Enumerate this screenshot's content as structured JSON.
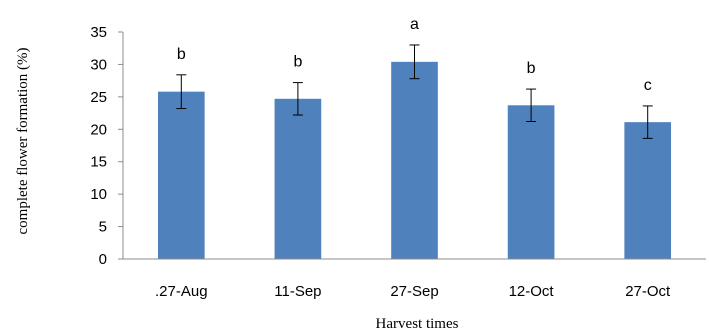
{
  "chart_data": {
    "type": "bar",
    "title": "",
    "xlabel": "Harvest times",
    "ylabel": "complete flower formation (%)",
    "ylim": [
      0,
      35
    ],
    "yticks": [
      0,
      5,
      10,
      15,
      20,
      25,
      30,
      35
    ],
    "grid": false,
    "categories": [
      ".27-Aug",
      "11-Sep",
      "27-Sep",
      "12-Oct",
      "27-Oct"
    ],
    "values": [
      25.8,
      24.7,
      30.4,
      23.7,
      21.1
    ],
    "error": [
      2.6,
      2.5,
      2.6,
      2.5,
      2.5
    ],
    "significance": [
      "b",
      "b",
      "a",
      "b",
      "c"
    ],
    "bar_color": "#4F81BD"
  }
}
